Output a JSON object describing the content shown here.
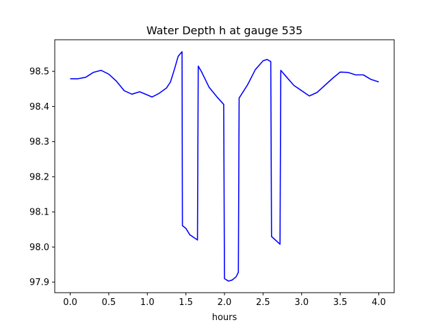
{
  "chart_data": {
    "type": "line",
    "title": "Water Depth h at gauge 535",
    "xlabel": "hours",
    "ylabel": "",
    "xlim": [
      -0.2,
      4.2
    ],
    "ylim": [
      97.87,
      98.59
    ],
    "grid": false,
    "xticks": [
      0.0,
      0.5,
      1.0,
      1.5,
      2.0,
      2.5,
      3.0,
      3.5,
      4.0
    ],
    "xtick_labels": [
      "0.0",
      "0.5",
      "1.0",
      "1.5",
      "2.0",
      "2.5",
      "3.0",
      "3.5",
      "4.0"
    ],
    "yticks": [
      97.9,
      98.0,
      98.1,
      98.2,
      98.3,
      98.4,
      98.5
    ],
    "ytick_labels": [
      "97.9",
      "98.0",
      "98.1",
      "98.2",
      "98.3",
      "98.4",
      "98.5"
    ],
    "series": [
      {
        "color": "#0000ff",
        "points": [
          [
            0.0,
            98.479
          ],
          [
            0.1,
            98.479
          ],
          [
            0.2,
            98.483
          ],
          [
            0.3,
            98.497
          ],
          [
            0.4,
            98.503
          ],
          [
            0.5,
            98.492
          ],
          [
            0.6,
            98.472
          ],
          [
            0.7,
            98.445
          ],
          [
            0.8,
            98.435
          ],
          [
            0.9,
            98.442
          ],
          [
            1.0,
            98.433
          ],
          [
            1.06,
            98.427
          ],
          [
            1.15,
            98.437
          ],
          [
            1.25,
            98.453
          ],
          [
            1.3,
            98.47
          ],
          [
            1.35,
            98.505
          ],
          [
            1.4,
            98.543
          ],
          [
            1.45,
            98.556
          ],
          [
            1.455,
            98.061
          ],
          [
            1.5,
            98.053
          ],
          [
            1.55,
            98.035
          ],
          [
            1.65,
            98.02
          ],
          [
            1.66,
            98.515
          ],
          [
            1.7,
            98.5
          ],
          [
            1.8,
            98.455
          ],
          [
            1.9,
            98.428
          ],
          [
            1.99,
            98.406
          ],
          [
            2.0,
            97.91
          ],
          [
            2.05,
            97.903
          ],
          [
            2.1,
            97.906
          ],
          [
            2.15,
            97.915
          ],
          [
            2.18,
            97.928
          ],
          [
            2.19,
            98.424
          ],
          [
            2.3,
            98.462
          ],
          [
            2.4,
            98.505
          ],
          [
            2.5,
            98.53
          ],
          [
            2.55,
            98.534
          ],
          [
            2.6,
            98.528
          ],
          [
            2.61,
            98.03
          ],
          [
            2.65,
            98.022
          ],
          [
            2.72,
            98.008
          ],
          [
            2.73,
            98.503
          ],
          [
            2.8,
            98.485
          ],
          [
            2.9,
            98.46
          ],
          [
            3.0,
            98.445
          ],
          [
            3.1,
            98.43
          ],
          [
            3.2,
            98.44
          ],
          [
            3.3,
            98.46
          ],
          [
            3.4,
            98.48
          ],
          [
            3.5,
            98.498
          ],
          [
            3.6,
            98.497
          ],
          [
            3.7,
            98.49
          ],
          [
            3.8,
            98.49
          ],
          [
            3.9,
            98.477
          ],
          [
            4.0,
            98.47
          ]
        ]
      }
    ]
  }
}
